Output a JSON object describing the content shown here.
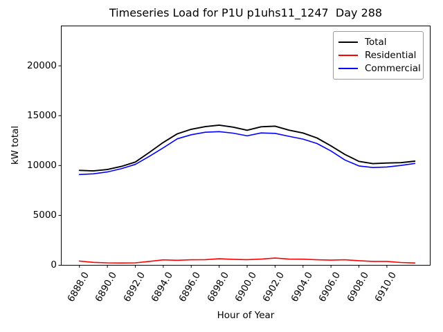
{
  "title": "Timeseries Load for P1U p1uhs11_1247  Day 288",
  "axes": {
    "xlabel": "Hour of Year",
    "ylabel": "kW total"
  },
  "legend": {
    "position": "upper right",
    "entries": [
      {
        "label": "Total",
        "color": "#000000"
      },
      {
        "label": "Residential",
        "color": "#ff0000"
      },
      {
        "label": "Commercial",
        "color": "#0000ff"
      }
    ]
  },
  "chart_data": {
    "type": "line",
    "title": "Timeseries Load for P1U p1uhs11_1247  Day 288",
    "xlabel": "Hour of Year",
    "ylabel": "kW total",
    "grid": false,
    "legend_position": "upper right",
    "x": [
      6888,
      6889,
      6890,
      6891,
      6892,
      6893,
      6894,
      6895,
      6896,
      6897,
      6898,
      6899,
      6900,
      6901,
      6902,
      6903,
      6904,
      6905,
      6906,
      6907,
      6908,
      6909,
      6910,
      6911,
      6912
    ],
    "series": [
      {
        "name": "Total",
        "color": "#000000",
        "values": [
          9520,
          9460,
          9600,
          9910,
          10350,
          11310,
          12320,
          13180,
          13640,
          13900,
          14050,
          13850,
          13540,
          13890,
          13950,
          13550,
          13260,
          12760,
          11970,
          11110,
          10420,
          10190,
          10250,
          10290,
          10440
        ]
      },
      {
        "name": "Residential",
        "color": "#ff0000",
        "values": [
          420,
          290,
          240,
          230,
          240,
          390,
          540,
          500,
          550,
          560,
          650,
          600,
          560,
          620,
          720,
          620,
          610,
          550,
          510,
          550,
          460,
          390,
          390,
          280,
          230
        ]
      },
      {
        "name": "Commercial",
        "color": "#0000ff",
        "values": [
          9100,
          9170,
          9360,
          9680,
          10110,
          10920,
          11780,
          12680,
          13090,
          13340,
          13400,
          13250,
          12980,
          13270,
          13230,
          12930,
          12650,
          12210,
          11460,
          10560,
          9960,
          9800,
          9860,
          10010,
          10210
        ]
      }
    ],
    "xlim": [
      6886.7,
      6913.1
    ],
    "ylim": [
      0,
      24000
    ],
    "xticks": {
      "values": [
        6888,
        6890,
        6892,
        6894,
        6896,
        6898,
        6900,
        6902,
        6904,
        6906,
        6908,
        6910
      ],
      "labels": [
        "6888.0",
        "6890.0",
        "6892.0",
        "6894.0",
        "6896.0",
        "6898.0",
        "6900.0",
        "6902.0",
        "6904.0",
        "6906.0",
        "6908.0",
        "6910.0"
      ]
    },
    "yticks": {
      "values": [
        0,
        5000,
        10000,
        15000,
        20000
      ],
      "labels": [
        "0",
        "5000",
        "10000",
        "15000",
        "20000"
      ]
    }
  }
}
